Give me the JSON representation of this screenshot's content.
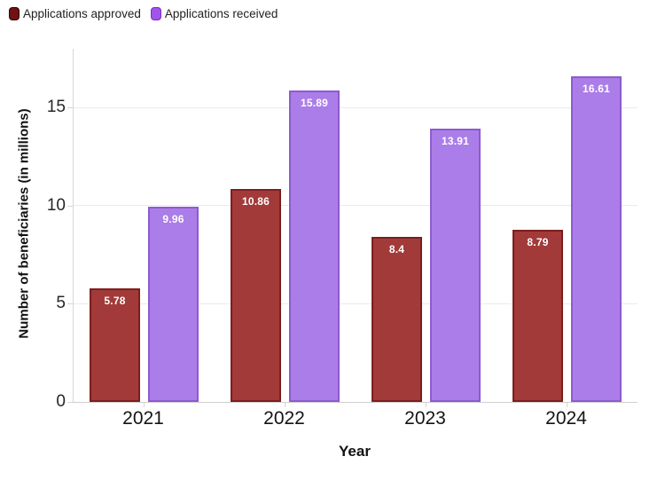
{
  "chart_data": {
    "type": "bar",
    "title": "",
    "categories": [
      "2021",
      "2022",
      "2023",
      "2024"
    ],
    "series": [
      {
        "name": "Applications approved",
        "values": [
          5.78,
          10.86,
          8.4,
          8.79
        ],
        "fill": "#a23a3a",
        "border": "#7d1e1e",
        "legend_fill": "#6e1212",
        "legend_border": "#300707"
      },
      {
        "name": "Applications received",
        "values": [
          9.96,
          15.89,
          13.91,
          16.61
        ],
        "fill": "#ab7de8",
        "border": "#8f5acf",
        "legend_fill": "#a253ea",
        "legend_border": "#7a2ecb"
      }
    ],
    "xlabel": "Year",
    "ylabel": "Number of beneficiaries (in millions)",
    "ylim": [
      0,
      18
    ],
    "yticks": [
      "0",
      "5",
      "10",
      "15"
    ],
    "grid": "horizontal",
    "legend_position": "top-left",
    "bar_label_color": "#ffffff",
    "gridline_color": "#eaeaea",
    "background_color": "#ffffff"
  }
}
